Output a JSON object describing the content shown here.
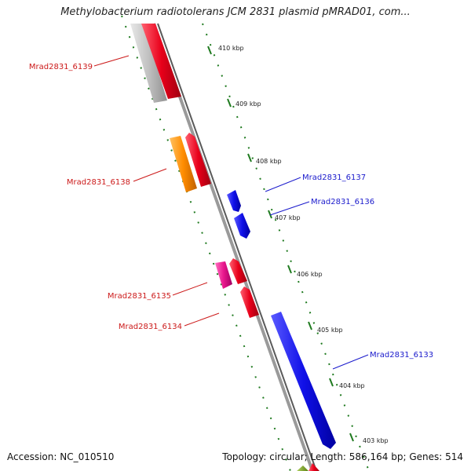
{
  "title": "Methylobacterium radiotolerans JCM 2831 plasmid pMRAD01, com...",
  "footer": {
    "accession": "Accession: NC_010510",
    "summary": "Topology: circular; Length: 586,164 bp; Genes: 514"
  },
  "colors": {
    "backbone": "#7a7a7a",
    "forward_label": "#1a1acc",
    "reverse_label": "#cc1a1a",
    "ticks": "#1f7a1f",
    "gene_red": "#e8001a",
    "gene_blue": "#1010e8",
    "gene_orange": "#ff8c00",
    "gene_pink": "#e8168c",
    "gene_gray": "#c0c0c0",
    "gene_olive": "#7aa020"
  },
  "tick_labels": [
    "410 kbp",
    "409 kbp",
    "408 kbp",
    "407 kbp",
    "406 kbp",
    "405 kbp",
    "404 kbp",
    "403 kbp"
  ],
  "gene_labels": {
    "reverse": [
      "Mrad2831_6139",
      "Mrad2831_6138",
      "Mrad2831_6135",
      "Mrad2831_6134"
    ],
    "forward": [
      "Mrad2831_6137",
      "Mrad2831_6136",
      "Mrad2831_6133"
    ]
  }
}
